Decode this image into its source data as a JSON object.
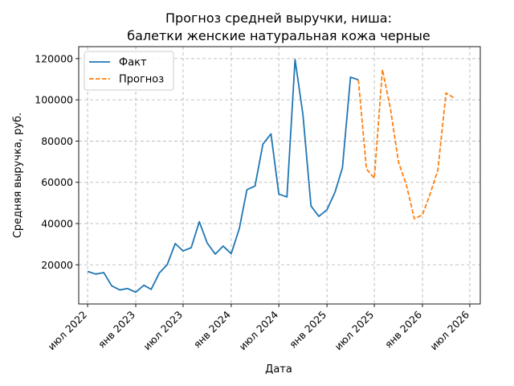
{
  "chart_data": {
    "type": "line",
    "title_lines": [
      "Прогноз средней выручки, ниша:",
      "балетки женские натуральная кожа черные"
    ],
    "xlabel": "Дата",
    "ylabel": "Средняя выручка, руб.",
    "xlim": [
      "2022-05-28",
      "2026-08-10"
    ],
    "ylim": [
      1000,
      125800
    ],
    "x_ticks": [
      {
        "date": "2022-07-01",
        "label": "июл 2022"
      },
      {
        "date": "2023-01-01",
        "label": "янв 2023"
      },
      {
        "date": "2023-07-01",
        "label": "июл 2023"
      },
      {
        "date": "2024-01-01",
        "label": "янв 2024"
      },
      {
        "date": "2024-07-01",
        "label": "июл 2024"
      },
      {
        "date": "2025-01-01",
        "label": "янв 2025"
      },
      {
        "date": "2025-07-01",
        "label": "июл 2025"
      },
      {
        "date": "2026-01-01",
        "label": "янв 2026"
      },
      {
        "date": "2026-07-01",
        "label": "июл 2026"
      }
    ],
    "y_ticks": [
      {
        "value": 20000,
        "label": "20000"
      },
      {
        "value": 40000,
        "label": "40000"
      },
      {
        "value": 60000,
        "label": "60000"
      },
      {
        "value": 80000,
        "label": "80000"
      },
      {
        "value": 100000,
        "label": "100000"
      },
      {
        "value": 120000,
        "label": "120000"
      }
    ],
    "grid": true,
    "legend_position": "top-left",
    "series": [
      {
        "name": "Факт",
        "color": "#1f77b4",
        "style": "solid",
        "points": [
          [
            "2022-07-01",
            16800
          ],
          [
            "2022-08-01",
            15500
          ],
          [
            "2022-09-01",
            16200
          ],
          [
            "2022-10-01",
            9800
          ],
          [
            "2022-11-01",
            7800
          ],
          [
            "2022-12-01",
            8500
          ],
          [
            "2023-01-01",
            6700
          ],
          [
            "2023-02-01",
            10100
          ],
          [
            "2023-03-01",
            8100
          ],
          [
            "2023-04-01",
            16000
          ],
          [
            "2023-05-01",
            20000
          ],
          [
            "2023-06-01",
            30300
          ],
          [
            "2023-07-01",
            26700
          ],
          [
            "2023-08-01",
            28300
          ],
          [
            "2023-09-01",
            40900
          ],
          [
            "2023-10-01",
            30600
          ],
          [
            "2023-11-01",
            25200
          ],
          [
            "2023-12-01",
            29100
          ],
          [
            "2024-01-01",
            25400
          ],
          [
            "2024-02-01",
            37600
          ],
          [
            "2024-03-01",
            56400
          ],
          [
            "2024-04-01",
            58200
          ],
          [
            "2024-05-01",
            78500
          ],
          [
            "2024-06-01",
            83500
          ],
          [
            "2024-07-01",
            54300
          ],
          [
            "2024-08-01",
            52900
          ],
          [
            "2024-09-01",
            119500
          ],
          [
            "2024-10-01",
            93000
          ],
          [
            "2024-11-01",
            48500
          ],
          [
            "2024-12-01",
            43500
          ],
          [
            "2025-01-01",
            46700
          ],
          [
            "2025-02-01",
            55300
          ],
          [
            "2025-03-01",
            67000
          ],
          [
            "2025-04-01",
            111000
          ],
          [
            "2025-05-01",
            109700
          ]
        ]
      },
      {
        "name": "Прогноз",
        "color": "#ff7f0e",
        "style": "dashed",
        "points": [
          [
            "2025-05-01",
            109700
          ],
          [
            "2025-06-01",
            66500
          ],
          [
            "2025-07-01",
            62000
          ],
          [
            "2025-08-01",
            114700
          ],
          [
            "2025-09-01",
            95500
          ],
          [
            "2025-10-01",
            70000
          ],
          [
            "2025-11-01",
            58500
          ],
          [
            "2025-12-01",
            42300
          ],
          [
            "2026-01-01",
            44200
          ],
          [
            "2026-02-01",
            55000
          ],
          [
            "2026-03-01",
            66000
          ],
          [
            "2026-04-01",
            103300
          ],
          [
            "2026-05-01",
            101000
          ]
        ]
      }
    ]
  }
}
